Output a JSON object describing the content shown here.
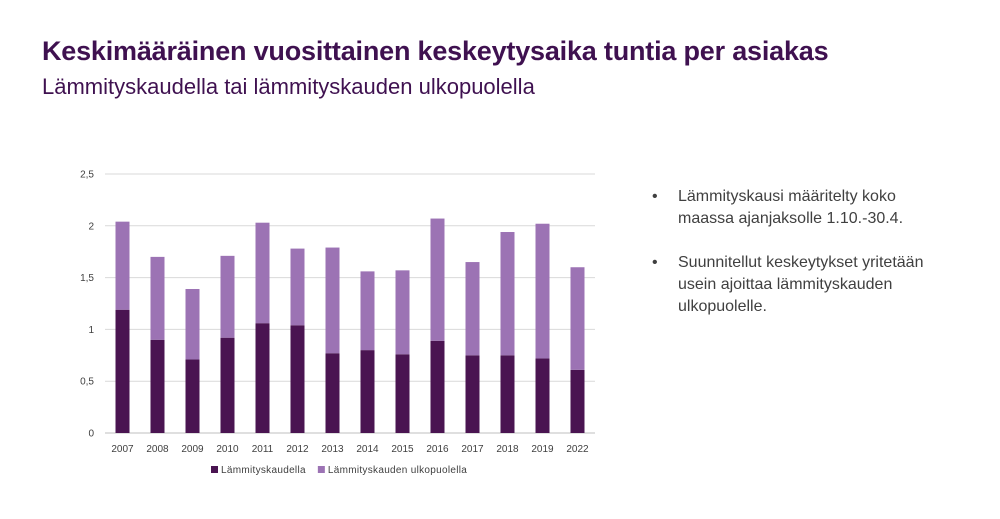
{
  "slide": {
    "title": "Keskimääräinen  vuosittainen keskeytysaika tuntia per asiakas",
    "subtitle": "Lämmityskaudella tai lämmityskauden ulkopuolella",
    "bullets": [
      {
        "symbol": "•",
        "text": "Lämmityskausi määritelty koko maassa ajanjaksolle 1.10.-30.4."
      },
      {
        "symbol": "•",
        "text": "Suunnitellut keskeytykset yritetään usein ajoittaa lämmityskauden ulkopuolelle."
      }
    ]
  },
  "chart_data": {
    "type": "bar",
    "stacked": true,
    "categories": [
      "2007",
      "2008",
      "2009",
      "2010",
      "2011",
      "2012",
      "2013",
      "2014",
      "2015",
      "2016",
      "2017",
      "2018",
      "2019",
      "2022"
    ],
    "series": [
      {
        "name": "Lämmityskaudella",
        "color": "#4a1451",
        "values": [
          1.19,
          0.9,
          0.71,
          0.92,
          1.06,
          1.04,
          0.77,
          0.8,
          0.76,
          0.89,
          0.75,
          0.75,
          0.72,
          0.61
        ]
      },
      {
        "name": "Lämmityskauden ulkopuolella",
        "color": "#9c73b4",
        "values": [
          0.85,
          0.8,
          0.68,
          0.79,
          0.97,
          0.74,
          1.02,
          0.76,
          0.81,
          1.18,
          0.9,
          1.19,
          1.3,
          0.99
        ]
      }
    ],
    "ylim": [
      0,
      2.5
    ],
    "yticks": [
      "0",
      "0,5",
      "1",
      "1,5",
      "2",
      "2,5"
    ],
    "grid": true,
    "legend_position": "bottom"
  }
}
